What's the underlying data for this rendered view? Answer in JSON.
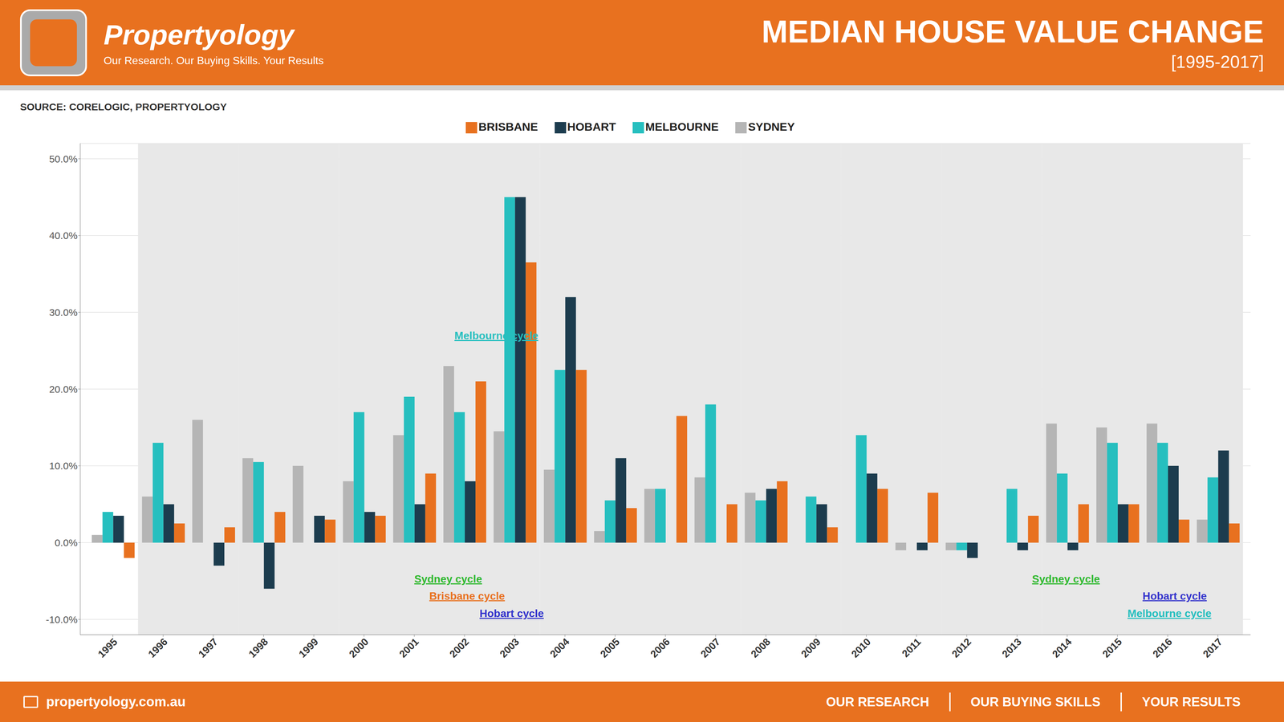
{
  "chart_data": {
    "type": "bar",
    "title": "MEDIAN HOUSE VALUE CHANGE",
    "subtitle": "[1995-2017]",
    "brand": "Propertyology",
    "tagline": "Our Research. Our Buying Skills. Your Results",
    "source": "SOURCE: CORELOGIC, PROPERTYOLOGY",
    "website": "propertyology.com.au",
    "footer": [
      "OUR RESEARCH",
      "OUR BUYING SKILLS",
      "YOUR RESULTS"
    ],
    "categories": [
      "1995",
      "1996",
      "1997",
      "1998",
      "1999",
      "2000",
      "2001",
      "2002",
      "2003",
      "2004",
      "2005",
      "2006",
      "2007",
      "2008",
      "2009",
      "2010",
      "2011",
      "2012",
      "2013",
      "2014",
      "2015",
      "2016",
      "2017"
    ],
    "series": [
      {
        "name": "SYDNEY",
        "color": "#b5b5b5",
        "values": [
          1.0,
          6.0,
          16.0,
          11.0,
          10.0,
          8.0,
          14.0,
          23.0,
          14.5,
          9.5,
          1.5,
          7.0,
          8.5,
          6.5,
          0.0,
          0.0,
          -1.0,
          -1.0,
          0.0,
          15.5,
          15.0,
          15.5,
          3.0
        ]
      },
      {
        "name": "MELBOURNE",
        "color": "#26bfbf",
        "values": [
          4.0,
          13.0,
          0.0,
          10.5,
          0.0,
          17.0,
          19.0,
          17.0,
          45.0,
          22.5,
          5.5,
          7.0,
          18.0,
          5.5,
          6.0,
          14.0,
          0.0,
          -1.0,
          7.0,
          9.0,
          13.0,
          13.0,
          8.5
        ]
      },
      {
        "name": "HOBART",
        "color": "#1c3c4e",
        "values": [
          3.5,
          5.0,
          -3.0,
          -6.0,
          3.5,
          4.0,
          5.0,
          8.0,
          45.0,
          32.0,
          11.0,
          0.0,
          0.0,
          7.0,
          5.0,
          9.0,
          -1.0,
          -2.0,
          -1.0,
          -1.0,
          5.0,
          10.0,
          12.0
        ]
      },
      {
        "name": "BRISBANE",
        "color": "#e8711f",
        "values": [
          -2.0,
          2.5,
          2.0,
          4.0,
          3.0,
          3.5,
          9.0,
          21.0,
          36.5,
          22.5,
          4.5,
          16.5,
          5.0,
          8.0,
          2.0,
          7.0,
          6.5,
          0.0,
          3.5,
          5.0,
          5.0,
          3.0,
          2.5
        ]
      }
    ],
    "ylim": [
      -12.0,
      52.0
    ],
    "yticks": [
      {
        "value": -10,
        "label": "-10.0%"
      },
      {
        "value": 0,
        "label": "0.0%"
      },
      {
        "value": 10,
        "label": "10.0%"
      },
      {
        "value": 20,
        "label": "20.0%"
      },
      {
        "value": 30,
        "label": "30.0%"
      },
      {
        "value": 40,
        "label": "40.0%"
      },
      {
        "value": 50,
        "label": "50.0%"
      }
    ],
    "grid": true,
    "annotations": [
      {
        "text": "Melbourne cycle",
        "x": 6.8,
        "y": 27.5,
        "color": "#26bfbf"
      },
      {
        "text": "Sydney cycle",
        "x": 6.0,
        "y": -4.2,
        "color": "#2db82d"
      },
      {
        "text": "Brisbane cycle",
        "x": 6.3,
        "y": -6.4,
        "color": "#e8711f"
      },
      {
        "text": "Hobart cycle",
        "x": 7.3,
        "y": -8.7,
        "color": "#3333cc"
      },
      {
        "text": "Sydney cycle",
        "x": 18.3,
        "y": -4.2,
        "color": "#2db82d"
      },
      {
        "text": "Hobart cycle",
        "x": 20.5,
        "y": -6.4,
        "color": "#3333cc"
      },
      {
        "text": "Melbourne cycle",
        "x": 20.2,
        "y": -8.7,
        "color": "#26bfbf"
      }
    ]
  }
}
